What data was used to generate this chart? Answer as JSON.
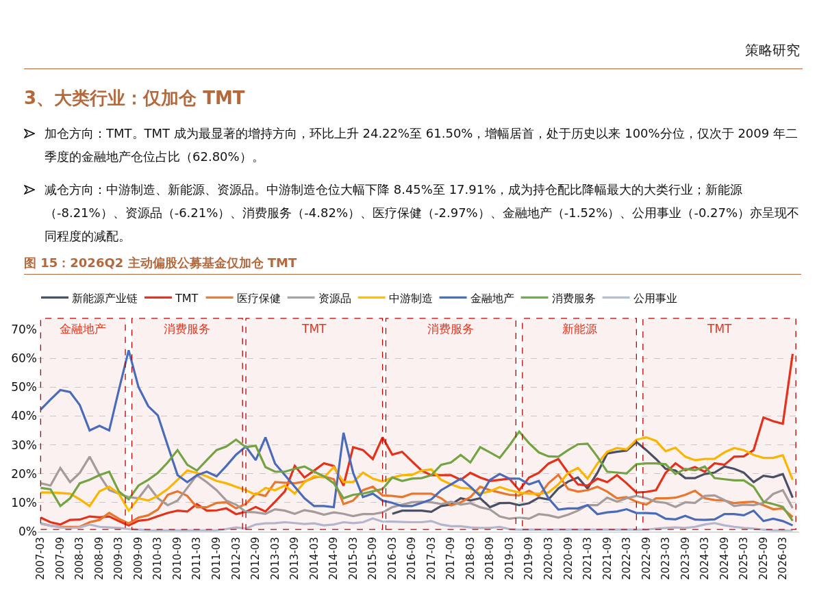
{
  "chart_data": {
    "type": "line",
    "title": "3、大类行业：仅加仓 TMT",
    "subtitle": "图 15：2026Q2 主动偏股公募基金仅加仓 TMT",
    "annotations": [
      "策略研究",
      "加仓方向：TMT。TMT 成为最显著的增持方向，环比上升 24.22%至 61.50%，增幅居首，处于历史以来 100%分位，仅次于 2009 年二季度的金融地产仓位占比（62.80%）。",
      "减仓方向：中游制造、新能源、资源品。中游制造仓位大幅下降 8.45%至 17.91%，成为持仓配比降幅最大的大类行业；新能源（-8.21%）、资源品（-6.21%）、消费服务（-4.82%）、医疗保健（-2.97%）、金融地产（-1.52%）、公用事业（-0.27%）亦呈现不同程度的减配。"
    ],
    "x": [
      "2007-03",
      "2007-06",
      "2007-09",
      "2007-12",
      "2008-03",
      "2008-06",
      "2008-09",
      "2008-12",
      "2009-03",
      "2009-06",
      "2009-09",
      "2009-12",
      "2010-03",
      "2010-06",
      "2010-09",
      "2010-12",
      "2011-03",
      "2011-06",
      "2011-09",
      "2011-12",
      "2012-03",
      "2012-06",
      "2012-09",
      "2012-12",
      "2013-03",
      "2013-06",
      "2013-09",
      "2013-12",
      "2014-03",
      "2014-06",
      "2014-09",
      "2014-12",
      "2015-03",
      "2015-06",
      "2015-09",
      "2015-12",
      "2016-03",
      "2016-06",
      "2016-09",
      "2016-12",
      "2017-03",
      "2017-06",
      "2017-09",
      "2017-12",
      "2018-03",
      "2018-06",
      "2018-09",
      "2018-12",
      "2019-03",
      "2019-06",
      "2019-09",
      "2019-12",
      "2020-03",
      "2020-06",
      "2020-09",
      "2020-12",
      "2021-03",
      "2021-06",
      "2021-09",
      "2021-12",
      "2022-03",
      "2022-06",
      "2022-09",
      "2022-12",
      "2023-03",
      "2023-06",
      "2023-09",
      "2023-12",
      "2024-03",
      "2024-06",
      "2024-09",
      "2024-12",
      "2025-03",
      "2025-06",
      "2025-09",
      "2025-12",
      "2026-03",
      "2026-06"
    ],
    "series": [
      {
        "name": "新能源产业链",
        "color": "#44546a",
        "values": [
          null,
          null,
          null,
          null,
          null,
          null,
          null,
          null,
          null,
          null,
          null,
          null,
          null,
          null,
          null,
          null,
          null,
          null,
          null,
          null,
          null,
          null,
          null,
          null,
          null,
          null,
          null,
          null,
          null,
          null,
          null,
          null,
          null,
          null,
          null,
          null,
          6.1,
          7.2,
          7.2,
          7.2,
          6.8,
          8.8,
          9.3,
          11.5,
          10.7,
          11.5,
          8.4,
          9.8,
          9.9,
          9.1,
          9.8,
          11.7,
          11.1,
          14.9,
          17.3,
          18.7,
          14.9,
          20.3,
          27,
          27.6,
          28,
          31,
          28.2,
          25.1,
          21.7,
          21.1,
          18.5,
          18.5,
          19.9,
          20.4,
          22.5,
          21.7,
          20.4,
          17.1,
          19.3,
          18.8,
          19.9,
          11.7
        ]
      },
      {
        "name": "TMT",
        "color": "#e8341c",
        "values": [
          4.8,
          3.2,
          2.4,
          4,
          4.1,
          5.2,
          4.9,
          5.2,
          3.6,
          2.1,
          3.7,
          4.1,
          5.3,
          6.4,
          7.2,
          6.9,
          9.5,
          7.2,
          7.3,
          8,
          6,
          6.8,
          8.5,
          6.9,
          10.3,
          13.9,
          22.7,
          18.7,
          21.1,
          23.6,
          22.7,
          15.9,
          29.2,
          28.2,
          25.1,
          32.6,
          26.6,
          27.6,
          24.3,
          21.1,
          19.5,
          19.5,
          19.5,
          17.9,
          20.3,
          18.7,
          17.5,
          17.9,
          18.3,
          14.3,
          18.7,
          20.3,
          23.5,
          25.1,
          20.3,
          16.3,
          15.9,
          18.3,
          17.1,
          19.5,
          16.7,
          13.5,
          13.7,
          14.3,
          20.3,
          23.6,
          21.2,
          22.3,
          20.7,
          23.6,
          23.1,
          25.9,
          26,
          28.2,
          39.5,
          38.2,
          37.3,
          61.5
        ]
      },
      {
        "name": "医疗保健",
        "color": "#ed7d31",
        "values": [
          2.8,
          2,
          1.6,
          1.6,
          1.6,
          3.2,
          4,
          6.4,
          4.4,
          2.8,
          4.8,
          5.6,
          7.6,
          12.7,
          13.9,
          12.3,
          8.4,
          8.4,
          9.9,
          10.1,
          8,
          9.5,
          13.1,
          12.3,
          17.1,
          16.9,
          16.7,
          17.3,
          18.7,
          19.1,
          18.1,
          9.5,
          10.7,
          14.3,
          15.5,
          12.5,
          12.3,
          11.9,
          13.1,
          13.1,
          13.1,
          11.5,
          9,
          10.1,
          11.9,
          15.5,
          14.3,
          13.5,
          12.7,
          12.5,
          14.1,
          12.3,
          16.7,
          19.6,
          14.7,
          13.8,
          14.3,
          15.5,
          13.8,
          11.5,
          11.9,
          10.3,
          9.3,
          11.5,
          11.5,
          11.7,
          12.7,
          14.1,
          11.5,
          10.9,
          10.7,
          9.8,
          10.1,
          10.3,
          9.1,
          7.7,
          8,
          5
        ]
      },
      {
        "name": "资源品",
        "color": "#a5a5a5",
        "values": [
          16.7,
          15.9,
          22,
          17.1,
          20.3,
          25.9,
          19.5,
          14.3,
          13.1,
          11.9,
          11.5,
          15.9,
          11.5,
          9.1,
          10.7,
          15.1,
          19.5,
          17.1,
          14.3,
          10.7,
          9.3,
          6.8,
          6.6,
          6.1,
          7.7,
          7.2,
          6.1,
          7.4,
          6.8,
          5.8,
          6.6,
          6.1,
          5.3,
          6,
          6,
          6.6,
          8.4,
          9.3,
          10.1,
          10.3,
          10.1,
          9.5,
          10.3,
          9.3,
          9.8,
          8.4,
          7.6,
          5.2,
          4.4,
          4.8,
          4.4,
          6,
          5.6,
          4.8,
          5.8,
          7.2,
          9.1,
          9.1,
          11.7,
          10.3,
          11.5,
          12.3,
          11.5,
          10.3,
          9.9,
          8.5,
          10.1,
          9.9,
          12.3,
          12.5,
          10.9,
          8.8,
          9.3,
          9.1,
          9.9,
          13,
          14.3,
          8.1
        ]
      },
      {
        "name": "中游制造",
        "color": "#ffc000",
        "values": [
          13.5,
          13.5,
          13.3,
          13.1,
          11.1,
          8.8,
          13.9,
          15.5,
          13.1,
          7.2,
          11.5,
          10.7,
          12.3,
          14.7,
          17.9,
          21.1,
          20.3,
          19.1,
          17.5,
          16.7,
          15.5,
          14.3,
          12.7,
          15.1,
          14.3,
          15.9,
          13.1,
          17.1,
          19.1,
          18.7,
          22.3,
          17.1,
          17.1,
          20.4,
          18.3,
          17.3,
          18.7,
          19.5,
          19.6,
          21.1,
          21.5,
          17.9,
          16.3,
          15.1,
          14.9,
          13.1,
          13.9,
          15.4,
          14.3,
          13.5,
          13.1,
          13.1,
          13.5,
          16.3,
          20.3,
          22,
          18.3,
          23.5,
          27.6,
          28.9,
          28.4,
          31.8,
          32.6,
          31.4,
          27.8,
          29,
          25.9,
          24.7,
          25.1,
          25.2,
          27.4,
          28.9,
          28.2,
          26.5,
          25.5,
          25.5,
          26.4,
          17.9
        ]
      },
      {
        "name": "金融地产",
        "color": "#4472c4",
        "values": [
          42.2,
          45.7,
          49,
          48.3,
          43.8,
          35,
          36.6,
          35,
          49,
          62.8,
          50,
          43.4,
          40.2,
          29.8,
          19.5,
          17.1,
          19.5,
          20.7,
          19.1,
          22.7,
          26.6,
          29.4,
          24.7,
          32.6,
          23.5,
          19.5,
          15.5,
          11.5,
          8.8,
          8.8,
          8.4,
          34.2,
          20.3,
          11.9,
          13.1,
          10.7,
          9.9,
          8.8,
          8.8,
          9.9,
          11.1,
          14.3,
          16.3,
          18.3,
          15.5,
          12.3,
          17.9,
          19.9,
          18.3,
          18.3,
          16.3,
          17.5,
          11.5,
          7.6,
          8,
          8,
          9.1,
          6,
          6.6,
          6.9,
          7.7,
          6.4,
          6.4,
          6.2,
          4.4,
          4.2,
          5.4,
          4.1,
          4,
          4.2,
          6,
          6,
          5.6,
          7.2,
          3.6,
          4.4,
          3.6,
          2.1
        ]
      },
      {
        "name": "消费服务",
        "color": "#70ad47",
        "values": [
          15.1,
          14.6,
          8.8,
          11.5,
          16.7,
          17.9,
          19.5,
          20.7,
          13.9,
          11.1,
          15.9,
          17.9,
          20.3,
          23.9,
          28.2,
          23.1,
          21.1,
          24.7,
          28.2,
          29.4,
          31.8,
          29.2,
          29.7,
          22.3,
          20.7,
          20.7,
          21.7,
          22.5,
          20.7,
          19.1,
          16.7,
          11.5,
          12.7,
          13.1,
          13.9,
          14.7,
          18.7,
          17.5,
          18.3,
          18.5,
          19.5,
          23.1,
          23.9,
          26.5,
          23.9,
          29.2,
          27.4,
          25.5,
          29.8,
          34.6,
          30.6,
          27.4,
          26,
          25.9,
          28.2,
          30.2,
          30.4,
          25.9,
          20.7,
          20.4,
          20.1,
          23.3,
          23.6,
          23.6,
          23.3,
          19.9,
          21.7,
          21.2,
          22.5,
          18.5,
          18.1,
          17.7,
          17.7,
          15.5,
          10.3,
          9.5,
          8.5,
          3.7
        ]
      },
      {
        "name": "公用事业",
        "color": "#b4c0d8",
        "values": [
          2.6,
          2,
          1.4,
          1.2,
          1.4,
          2.4,
          1.6,
          1.4,
          1.2,
          0.8,
          0.6,
          0.4,
          0.4,
          0.4,
          0.4,
          0.4,
          0.4,
          0.4,
          0.4,
          0.8,
          1.4,
          1,
          2.4,
          2.8,
          2.9,
          3.2,
          2.9,
          2.6,
          2.8,
          2.1,
          2.4,
          3.2,
          2.9,
          3.2,
          4.5,
          3.4,
          3.4,
          3.3,
          3.2,
          3.2,
          3.6,
          2.4,
          1.8,
          1.8,
          1.4,
          1.2,
          1.2,
          1.6,
          0.8,
          0.6,
          0.6,
          0.6,
          0.6,
          0.6,
          0.6,
          0.6,
          0.6,
          0.6,
          0.6,
          0.6,
          0.6,
          0.6,
          0.6,
          1,
          1.2,
          1.4,
          1.2,
          1.6,
          2.4,
          2.9,
          2.1,
          1.6,
          1.2,
          1,
          0.6,
          0.4,
          0.4,
          0.2
        ]
      }
    ],
    "bands": [
      {
        "axis": "x",
        "from": "2007-03",
        "to": "2009-05",
        "label": "金融地产",
        "color": "#c00000"
      },
      {
        "axis": "x",
        "from": "2009-07",
        "to": "2012-05",
        "label": "消费服务",
        "color": "#c00000"
      },
      {
        "axis": "x",
        "from": "2012-06",
        "to": "2015-12",
        "label": "TMT",
        "color": "#c00000"
      },
      {
        "axis": "x",
        "from": "2016-01",
        "to": "2019-05",
        "label": "消费服务",
        "color": "#c00000"
      },
      {
        "axis": "x",
        "from": "2019-07",
        "to": "2022-06",
        "label": "新能源",
        "color": "#c00000"
      },
      {
        "axis": "x",
        "from": "2022-08",
        "to": "2026-07",
        "label": "TMT",
        "color": "#c00000"
      }
    ],
    "xlim": [
      "2007-02",
      "2026-08"
    ],
    "xticks": [
      "2007-03",
      "2007-09",
      "2008-03",
      "2008-09",
      "2009-03",
      "2009-09",
      "2010-03",
      "2010-09",
      "2011-03",
      "2011-09",
      "2012-03",
      "2012-09",
      "2013-03",
      "2013-09",
      "2014-03",
      "2014-09",
      "2015-03",
      "2015-09",
      "2016-03",
      "2016-09",
      "2017-03",
      "2017-09",
      "2018-03",
      "2018-09",
      "2019-03",
      "2019-09",
      "2020-03",
      "2020-09",
      "2021-03",
      "2021-09",
      "2022-03",
      "2022-09",
      "2023-03",
      "2023-09",
      "2024-03",
      "2024-09",
      "2025-03",
      "2025-09",
      "2026-03"
    ],
    "ylim": [
      0,
      70
    ],
    "yticks": [
      {
        "value": 0,
        "label": "0%"
      },
      {
        "value": 10,
        "label": "10%"
      },
      {
        "value": 20,
        "label": "20%"
      },
      {
        "value": 30,
        "label": "30%"
      },
      {
        "value": 40,
        "label": "40%"
      },
      {
        "value": 50,
        "label": "50%"
      },
      {
        "value": 60,
        "label": "60%"
      },
      {
        "value": 70,
        "label": "70%"
      }
    ],
    "grid": "y",
    "legend": "top",
    "line_style": "solid",
    "marker": "none"
  }
}
